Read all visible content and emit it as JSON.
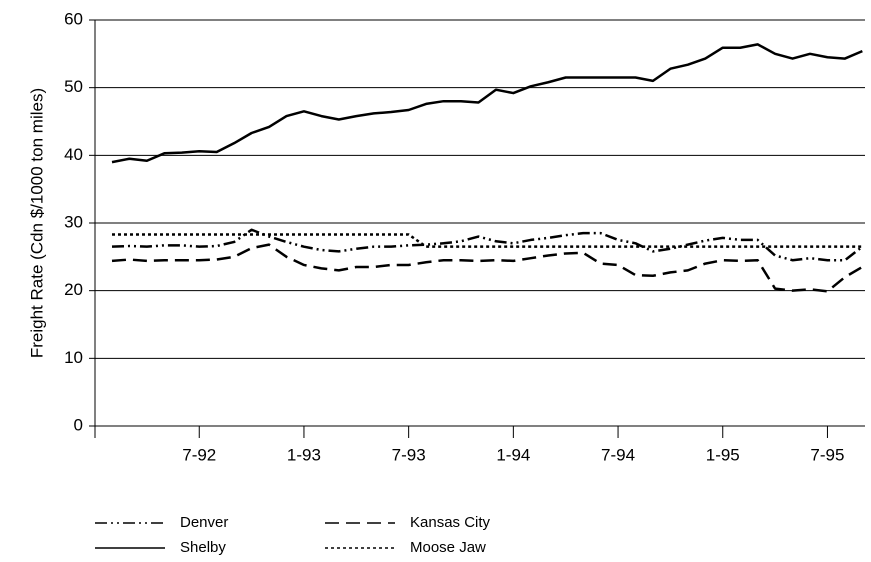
{
  "chart_data": {
    "type": "line",
    "y_label": "Freight Rate (Cdn $/1000 ton miles)",
    "categories": [
      null,
      null,
      null,
      null,
      null,
      "7-92",
      null,
      null,
      null,
      null,
      null,
      "1-93",
      null,
      null,
      null,
      null,
      null,
      "7-93",
      null,
      null,
      null,
      null,
      null,
      "1-94",
      null,
      null,
      null,
      null,
      null,
      "7-94",
      null,
      null,
      null,
      null,
      null,
      "1-95",
      null,
      null,
      null,
      null,
      null,
      "7-95",
      null,
      null
    ],
    "ylim": [
      0,
      60
    ],
    "yticks": [
      0,
      10,
      20,
      30,
      40,
      50,
      60
    ],
    "grid": true,
    "legend": "bottom",
    "series": [
      {
        "name": "Denver",
        "color": "#000000",
        "dash": "12 4 2 4 2 4",
        "values": [
          26.5,
          26.6,
          26.5,
          26.7,
          26.7,
          26.5,
          26.6,
          27.2,
          29,
          28,
          27.2,
          26.5,
          26,
          25.8,
          26.2,
          26.5,
          26.5,
          26.7,
          26.8,
          27,
          27.3,
          28,
          27.3,
          27,
          27.5,
          27.8,
          28.2,
          28.5,
          28.5,
          27.5,
          27,
          25.8,
          26.2,
          26.8,
          27.4,
          27.8,
          27.5,
          27.5,
          25.2,
          24.5,
          24.8,
          24.5,
          24.5,
          26.5
        ]
      },
      {
        "name": "Kansas City",
        "color": "#000000",
        "dash": "14 7",
        "values": [
          24.4,
          24.6,
          24.4,
          24.5,
          24.5,
          24.5,
          24.6,
          25,
          26.3,
          26.8,
          25,
          23.8,
          23.3,
          23,
          23.5,
          23.5,
          23.8,
          23.8,
          24.2,
          24.5,
          24.5,
          24.4,
          24.5,
          24.4,
          24.8,
          25.2,
          25.5,
          25.6,
          24,
          23.8,
          22.3,
          22.2,
          22.7,
          23,
          24,
          24.5,
          24.4,
          24.5,
          20.3,
          20,
          20.2,
          19.9,
          22,
          23.5
        ]
      },
      {
        "name": "Shelby",
        "color": "#000000",
        "dash": "none",
        "values": [
          39,
          39.5,
          39.2,
          40.3,
          40.4,
          40.6,
          40.5,
          41.8,
          43.3,
          44.2,
          45.8,
          46.5,
          45.8,
          45.3,
          45.8,
          46.2,
          46.4,
          46.7,
          47.6,
          48,
          48,
          47.8,
          49.7,
          49.2,
          50.2,
          50.8,
          51.5,
          51.5,
          51.5,
          51.5,
          51.5,
          51,
          52.8,
          53.4,
          54.3,
          55.9,
          55.9,
          56.4,
          55,
          54.3,
          55,
          54.5,
          54.3,
          55.4
        ]
      },
      {
        "name": "Moose Jaw",
        "color": "#000000",
        "dash": "3 3",
        "values": [
          28.3,
          28.3,
          28.3,
          28.3,
          28.3,
          28.3,
          28.3,
          28.3,
          28.3,
          28.3,
          28.3,
          28.3,
          28.3,
          28.3,
          28.3,
          28.3,
          28.3,
          28.3,
          26.5,
          26.5,
          26.5,
          26.5,
          26.5,
          26.5,
          26.5,
          26.5,
          26.5,
          26.5,
          26.5,
          26.5,
          26.5,
          26.5,
          26.5,
          26.5,
          26.5,
          26.5,
          26.5,
          26.5,
          26.5,
          26.5,
          26.5,
          26.5,
          26.5,
          26.5
        ]
      }
    ]
  }
}
